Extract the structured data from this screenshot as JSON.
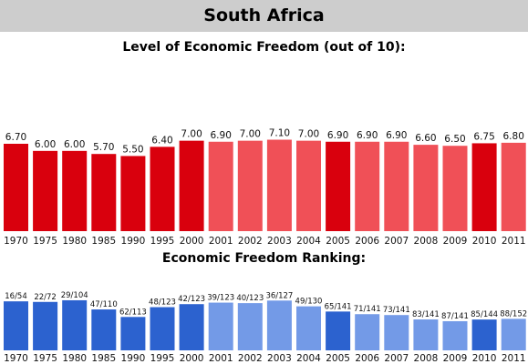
{
  "header": {
    "title": "South Africa"
  },
  "chart_data": [
    {
      "type": "bar",
      "title": "Level of Economic Freedom (out of 10):",
      "categories": [
        "1970",
        "1975",
        "1980",
        "1985",
        "1990",
        "1995",
        "2000",
        "2001",
        "2002",
        "2003",
        "2004",
        "2005",
        "2006",
        "2007",
        "2008",
        "2009",
        "2010",
        "2011"
      ],
      "values": [
        6.7,
        6.0,
        6.0,
        5.7,
        5.5,
        6.4,
        7.0,
        6.9,
        7.0,
        7.1,
        7.0,
        6.9,
        6.9,
        6.9,
        6.6,
        6.5,
        6.75,
        6.8
      ],
      "labels": [
        "6.70",
        "6.00",
        "6.00",
        "5.70",
        "5.50",
        "6.40",
        "7.00",
        "6.90",
        "7.00",
        "7.10",
        "7.00",
        "6.90",
        "6.90",
        "6.90",
        "6.60",
        "6.50",
        "6.75",
        "6.80"
      ],
      "ylim": [
        0,
        10
      ],
      "colors": {
        "highlight": "#d9000d",
        "normal": "#f05057"
      },
      "highlighted": [
        "1970",
        "1975",
        "1980",
        "1985",
        "1990",
        "1995",
        "2000",
        "2005",
        "2010"
      ]
    },
    {
      "type": "bar",
      "title": "Economic Freedom Ranking:",
      "categories": [
        "1970",
        "1975",
        "1980",
        "1985",
        "1990",
        "1995",
        "2000",
        "2001",
        "2002",
        "2003",
        "2004",
        "2005",
        "2006",
        "2007",
        "2008",
        "2009",
        "2010",
        "2011"
      ],
      "rank": [
        16,
        22,
        29,
        47,
        62,
        48,
        42,
        39,
        40,
        36,
        49,
        65,
        71,
        73,
        83,
        87,
        85,
        88
      ],
      "out_of": [
        54,
        72,
        104,
        110,
        113,
        123,
        123,
        123,
        123,
        127,
        130,
        141,
        141,
        141,
        141,
        141,
        144,
        152
      ],
      "labels": [
        "16/54",
        "22/72",
        "29/104",
        "47/110",
        "62/113",
        "48/123",
        "42/123",
        "39/123",
        "40/123",
        "36/127",
        "49/130",
        "65/141",
        "71/141",
        "73/141",
        "83/141",
        "87/141",
        "85/144",
        "88/152"
      ],
      "colors": {
        "highlight": "#2c62cf",
        "normal": "#739ae7"
      },
      "highlighted": [
        "1970",
        "1975",
        "1980",
        "1985",
        "1990",
        "1995",
        "2000",
        "2005",
        "2010"
      ]
    }
  ]
}
